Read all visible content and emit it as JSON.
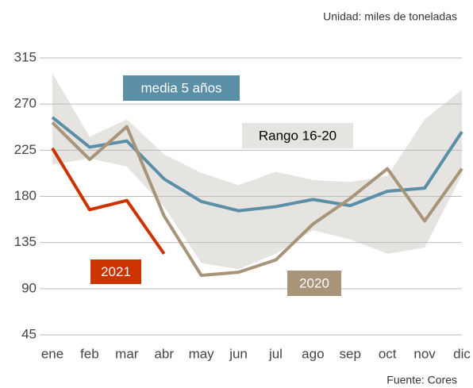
{
  "chart_data": {
    "type": "line",
    "unit_note": "Unidad: miles de toneladas",
    "source": "Fuente: Cores",
    "categories": [
      "ene",
      "feb",
      "mar",
      "abr",
      "may",
      "jun",
      "jul",
      "ago",
      "sep",
      "oct",
      "nov",
      "dic"
    ],
    "band": {
      "name": "Rango 16-20",
      "color": "#e6e4e0",
      "lower": [
        211,
        217,
        209,
        170,
        115,
        109,
        124,
        147,
        138,
        124,
        130,
        201
      ],
      "upper": [
        300,
        238,
        255,
        221,
        203,
        191,
        204,
        196,
        194,
        200,
        255,
        284
      ]
    },
    "series": [
      {
        "name": "media 5 años",
        "color": "#5b8fa8",
        "values": [
          257,
          228,
          234,
          197,
          175,
          166,
          170,
          177,
          171,
          185,
          188,
          243
        ]
      },
      {
        "name": "2020",
        "color": "#a89478",
        "values": [
          252,
          216,
          248,
          161,
          103,
          106,
          118,
          153,
          178,
          207,
          156,
          207
        ]
      },
      {
        "name": "2021",
        "color": "#cc3300",
        "values": [
          227,
          167,
          176,
          124,
          null,
          null,
          null,
          null,
          null,
          null,
          null,
          null
        ]
      }
    ],
    "ylim": [
      45,
      315
    ],
    "yticks": [
      45,
      90,
      135,
      180,
      225,
      270,
      315
    ],
    "grid": true
  }
}
